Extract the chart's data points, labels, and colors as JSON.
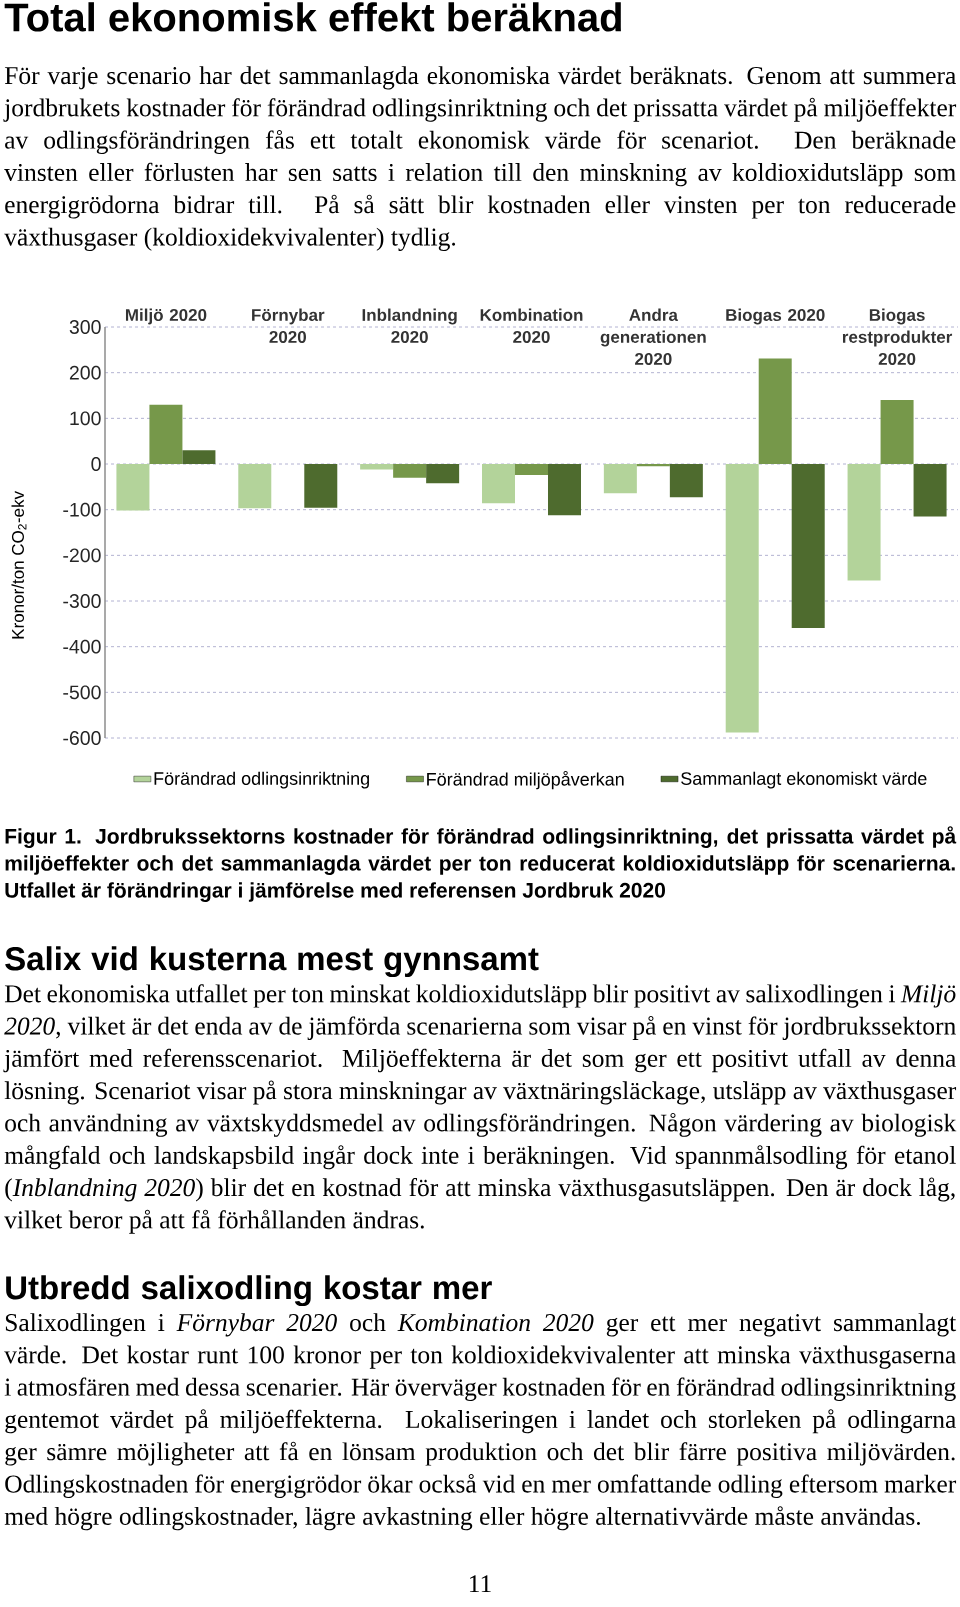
{
  "chart_data": {
    "type": "bar",
    "title": "Total ekonomisk effekt beräknad",
    "subtitle": "För varje scenario har det sammanlagda ekonomiska värdet beräknats. Genom att summera jordbrukets kostnader för förändrad odlingsinriktning och det prissatta värdet på miljöeffekter av odlingsförändringen fås ett totalt ekonomisk värde för scenariot. Den beräknade vinsten eller förlusten har sen satts i relation till den minskning av koldioxidutsläpp som energigrödorna bidrar till. På så sätt blir kostnaden eller vinsten per ton reducerade växthusgaser (koldioxidekvivalenter) tydlig.",
    "ylabel": "Kronor/ton CO$_{2}$-ekv",
    "categories": [
      "Miljö 2020",
      "Förnybar 2020",
      "Inblandning 2020",
      "Kombination 2020",
      "Andra generationen 2020",
      "Biogas 2020",
      "Biogas restprodukter 2020"
    ],
    "series": [
      {
        "name": "Förändrad odlingsinriktning",
        "color": "#b3d39a",
        "values": [
          -102,
          -97,
          -12,
          -86,
          -64,
          -588,
          -255
        ]
      },
      {
        "name": "Förändrad miljöpåverkan",
        "color": "#76984a",
        "values": [
          130,
          0,
          -30,
          -24,
          -5,
          231,
          140
        ]
      },
      {
        "name": "Sammanlagt ekonomiskt värde",
        "color": "#4e6b2e",
        "values": [
          30,
          -96,
          -42,
          -112,
          -73,
          -359,
          -115
        ]
      }
    ],
    "ylim": [
      -600,
      300
    ],
    "yticks": [
      -600,
      -500,
      -400,
      -300,
      -200,
      -100,
      0,
      100,
      200,
      300
    ],
    "grid": "y",
    "legend": "bottom",
    "annotations": [
      "Figur 1. Jordbrukssektorns kostnader för förändrad odlingsinriktning, det prissatta värdet på miljöeffekter och det sammanlagda värdet per ton reducerat koldioxidutsläpp för scenarierna. Utfallet är förändringar i jämförelse med referensen Jordbruk 2020",
      "Salix vid kusterna mest gynnsamt",
      "Det ekonomiska utfallet per ton minskat koldioxidutsläpp blir positivt av salixodlingen i *Miljö 2020*, vilket är det enda av de jämförda scenarierna som visar på en vinst för jordbrukssektorn jämfört med referensscenariot. Miljöeffekterna är det som ger ett positivt utfall av denna lösning. Scenariot visar på stora minskningar av växtnäringsläckage, utsläpp av växthusgaser och användning av växtskyddsmedel av odlingsförändringen. Någon värdering av biologisk mångfald och landskapsbild ingår dock inte i beräkningen. Vid spannmålsodling för etanol (*Inblandning 2020*) blir det en kostnad för att minska växthusgasutsläppen. Den är dock låg, vilket beror på att få förhållanden ändras.",
      "Utbredd salixodling kostar mer",
      "Salixodlingen i *Förnybar 2020* och *Kombination 2020* ger ett mer negativt sammanlagt värde. Det kostar runt 100 kronor per ton koldioxidekvivalenter att minska växthusgaserna i atmosfären med dessa scenarier. Här överväger kostnaden för en förändrad odlingsinriktning gentemot värdet på miljöeffekterna. Lokaliseringen i landet och storleken på odlingarna ger sämre möjligheter att få en lönsam produktion och det blir färre positiva miljövärden. Odlingskostnaden för energigrödor ökar också vid en mer omfattande odling eftersom marker med högre odlingskostnader, lägre avkastning eller högre alternativvärde måste användas.",
      "11"
    ]
  }
}
